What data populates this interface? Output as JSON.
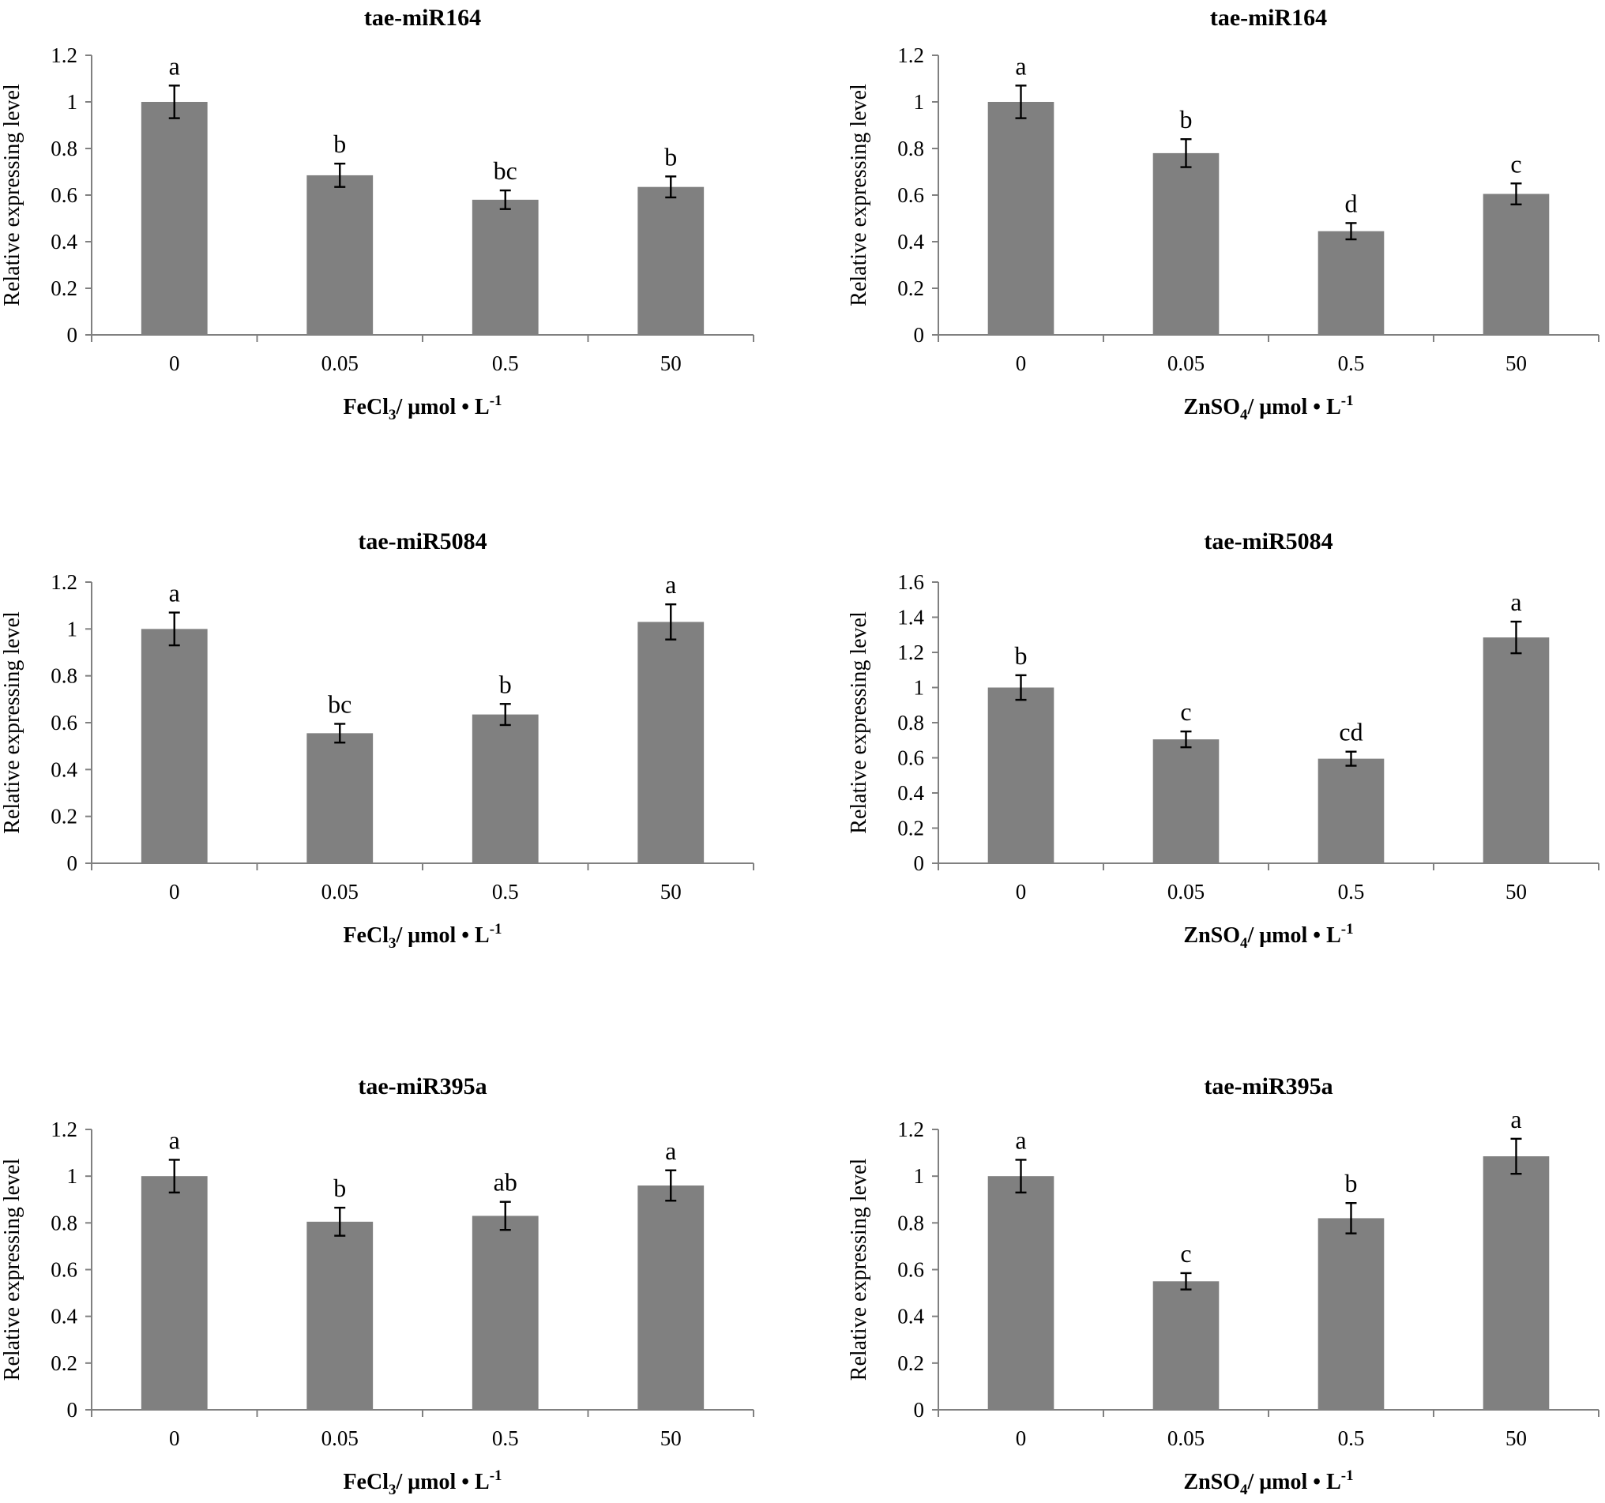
{
  "chart_data": [
    {
      "id": "fe-mir164",
      "type": "bar",
      "title": "tae-miR164",
      "xlabel": {
        "prefix": "FeCl",
        "sub": "3",
        "suffix": "/ μmol • L",
        "sup": "-1"
      },
      "ylabel": "Relative expressing level",
      "categories": [
        "0",
        "0.05",
        "0.5",
        "50"
      ],
      "values": [
        1.0,
        0.685,
        0.58,
        0.635
      ],
      "errors": [
        0.07,
        0.05,
        0.04,
        0.045
      ],
      "letters": [
        "a",
        "b",
        "bc",
        "b"
      ],
      "ylim": [
        0,
        1.2
      ],
      "yticks": [
        "0",
        "0.2",
        "0.4",
        "0.6",
        "0.8",
        "1",
        "1.2"
      ]
    },
    {
      "id": "zn-mir164",
      "type": "bar",
      "title": "tae-miR164",
      "xlabel": {
        "prefix": "ZnSO",
        "sub": "4",
        "suffix": "/ μmol • L",
        "sup": "-1"
      },
      "ylabel": "Relative expressing level",
      "categories": [
        "0",
        "0.05",
        "0.5",
        "50"
      ],
      "values": [
        1.0,
        0.78,
        0.445,
        0.605
      ],
      "errors": [
        0.07,
        0.06,
        0.035,
        0.045
      ],
      "letters": [
        "a",
        "b",
        "d",
        "c"
      ],
      "ylim": [
        0,
        1.2
      ],
      "yticks": [
        "0",
        "0.2",
        "0.4",
        "0.6",
        "0.8",
        "1",
        "1.2"
      ]
    },
    {
      "id": "fe-mir5084",
      "type": "bar",
      "title": "tae-miR5084",
      "xlabel": {
        "prefix": "FeCl",
        "sub": "3",
        "suffix": "/ μmol • L",
        "sup": "-1"
      },
      "ylabel": "Relative expressing level",
      "categories": [
        "0",
        "0.05",
        "0.5",
        "50"
      ],
      "values": [
        1.0,
        0.555,
        0.635,
        1.03
      ],
      "errors": [
        0.07,
        0.04,
        0.045,
        0.075
      ],
      "letters": [
        "a",
        "bc",
        "b",
        "a"
      ],
      "ylim": [
        0,
        1.2
      ],
      "yticks": [
        "0",
        "0.2",
        "0.4",
        "0.6",
        "0.8",
        "1",
        "1.2"
      ]
    },
    {
      "id": "zn-mir5084",
      "type": "bar",
      "title": "tae-miR5084",
      "xlabel": {
        "prefix": "ZnSO",
        "sub": "4",
        "suffix": "/ μmol • L",
        "sup": "-1"
      },
      "ylabel": "Relative expressing level",
      "categories": [
        "0",
        "0.05",
        "0.5",
        "50"
      ],
      "values": [
        1.0,
        0.705,
        0.595,
        1.285
      ],
      "errors": [
        0.07,
        0.045,
        0.04,
        0.09
      ],
      "letters": [
        "b",
        "c",
        "cd",
        "a"
      ],
      "ylim": [
        0,
        1.6
      ],
      "yticks": [
        "0",
        "0.2",
        "0.4",
        "0.6",
        "0.8",
        "1",
        "1.2",
        "1.4",
        "1.6"
      ]
    },
    {
      "id": "fe-mir395a",
      "type": "bar",
      "title": "tae-miR395a",
      "xlabel": {
        "prefix": "FeCl",
        "sub": "3",
        "suffix": "/ μmol • L",
        "sup": "-1"
      },
      "ylabel": "Relative expressing level",
      "categories": [
        "0",
        "0.05",
        "0.5",
        "50"
      ],
      "values": [
        1.0,
        0.805,
        0.83,
        0.96
      ],
      "errors": [
        0.07,
        0.06,
        0.06,
        0.065
      ],
      "letters": [
        "a",
        "b",
        "ab",
        "a"
      ],
      "ylim": [
        0,
        1.2
      ],
      "yticks": [
        "0",
        "0.2",
        "0.4",
        "0.6",
        "0.8",
        "1",
        "1.2"
      ]
    },
    {
      "id": "zn-mir395a",
      "type": "bar",
      "title": "tae-miR395a",
      "xlabel": {
        "prefix": "ZnSO",
        "sub": "4",
        "suffix": "/ μmol • L",
        "sup": "-1"
      },
      "ylabel": "Relative expressing level",
      "categories": [
        "0",
        "0.05",
        "0.5",
        "50"
      ],
      "values": [
        1.0,
        0.55,
        0.82,
        1.085
      ],
      "errors": [
        0.07,
        0.035,
        0.065,
        0.075
      ],
      "letters": [
        "a",
        "c",
        "b",
        "a"
      ],
      "ylim": [
        0,
        1.2
      ],
      "yticks": [
        "0",
        "0.2",
        "0.4",
        "0.6",
        "0.8",
        "1",
        "1.2"
      ]
    }
  ]
}
